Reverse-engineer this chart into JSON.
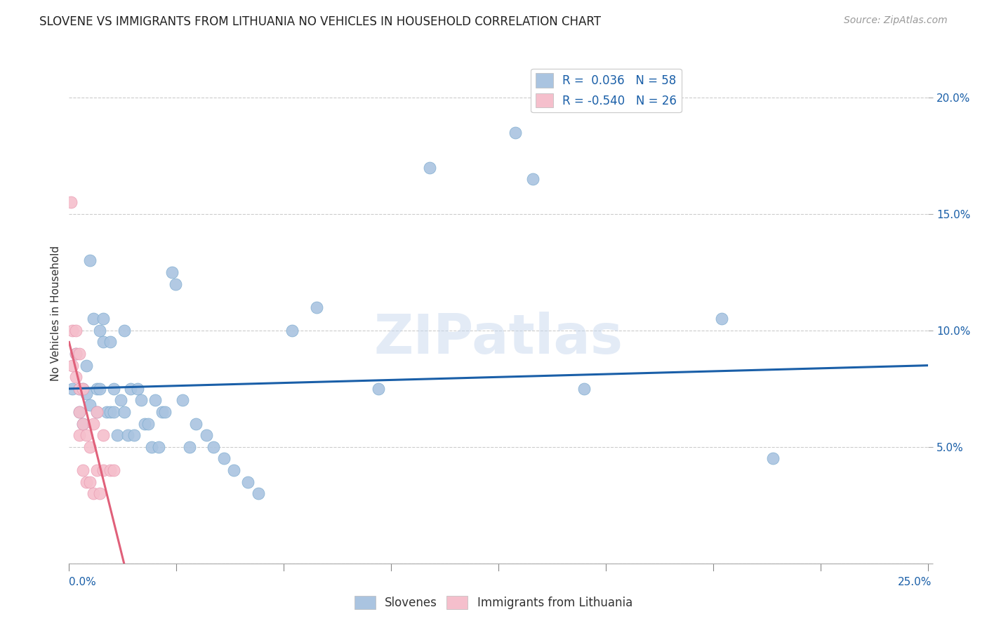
{
  "title": "SLOVENE VS IMMIGRANTS FROM LITHUANIA NO VEHICLES IN HOUSEHOLD CORRELATION CHART",
  "source": "Source: ZipAtlas.com",
  "ylabel": "No Vehicles in Household",
  "yticks": [
    0.0,
    0.05,
    0.1,
    0.15,
    0.2
  ],
  "ytick_labels": [
    "",
    "5.0%",
    "10.0%",
    "15.0%",
    "20.0%"
  ],
  "xlim": [
    0.0,
    0.25
  ],
  "ylim": [
    0.0,
    0.215
  ],
  "blue_color": "#aac4e0",
  "blue_edge_color": "#7aaace",
  "blue_line_color": "#1a5fa8",
  "pink_color": "#f5bfcc",
  "pink_edge_color": "#e898b0",
  "pink_line_color": "#e0607a",
  "legend_blue_label": "R =  0.036   N = 58",
  "legend_pink_label": "R = -0.540   N = 26",
  "blue_scatter_x": [
    0.001,
    0.002,
    0.003,
    0.003,
    0.004,
    0.004,
    0.005,
    0.005,
    0.006,
    0.006,
    0.007,
    0.008,
    0.008,
    0.009,
    0.009,
    0.01,
    0.01,
    0.011,
    0.012,
    0.012,
    0.013,
    0.013,
    0.014,
    0.015,
    0.016,
    0.016,
    0.017,
    0.018,
    0.019,
    0.02,
    0.021,
    0.022,
    0.023,
    0.024,
    0.025,
    0.026,
    0.027,
    0.028,
    0.03,
    0.031,
    0.033,
    0.035,
    0.037,
    0.04,
    0.042,
    0.045,
    0.048,
    0.052,
    0.055,
    0.065,
    0.072,
    0.09,
    0.105,
    0.13,
    0.135,
    0.19,
    0.205,
    0.15
  ],
  "blue_scatter_y": [
    0.075,
    0.09,
    0.075,
    0.065,
    0.075,
    0.06,
    0.085,
    0.073,
    0.13,
    0.068,
    0.105,
    0.075,
    0.065,
    0.1,
    0.075,
    0.105,
    0.095,
    0.065,
    0.095,
    0.065,
    0.075,
    0.065,
    0.055,
    0.07,
    0.065,
    0.1,
    0.055,
    0.075,
    0.055,
    0.075,
    0.07,
    0.06,
    0.06,
    0.05,
    0.07,
    0.05,
    0.065,
    0.065,
    0.125,
    0.12,
    0.07,
    0.05,
    0.06,
    0.055,
    0.05,
    0.045,
    0.04,
    0.035,
    0.03,
    0.1,
    0.11,
    0.075,
    0.17,
    0.185,
    0.165,
    0.105,
    0.045,
    0.075
  ],
  "pink_scatter_x": [
    0.0005,
    0.001,
    0.001,
    0.002,
    0.002,
    0.002,
    0.003,
    0.003,
    0.003,
    0.003,
    0.004,
    0.004,
    0.004,
    0.005,
    0.005,
    0.006,
    0.006,
    0.007,
    0.007,
    0.008,
    0.008,
    0.009,
    0.01,
    0.01,
    0.012,
    0.013
  ],
  "pink_scatter_y": [
    0.155,
    0.1,
    0.085,
    0.1,
    0.09,
    0.08,
    0.09,
    0.075,
    0.065,
    0.055,
    0.075,
    0.06,
    0.04,
    0.055,
    0.035,
    0.05,
    0.035,
    0.06,
    0.03,
    0.065,
    0.04,
    0.03,
    0.055,
    0.04,
    0.04,
    0.04
  ],
  "blue_trend_x": [
    0.0,
    0.25
  ],
  "blue_trend_y": [
    0.075,
    0.085
  ],
  "pink_trend_x": [
    0.0,
    0.016
  ],
  "pink_trend_y": [
    0.095,
    0.0
  ],
  "watermark": "ZIPatlas",
  "background_color": "#ffffff",
  "grid_color": "#cccccc",
  "title_fontsize": 12,
  "source_fontsize": 10,
  "tick_label_fontsize": 11,
  "ylabel_fontsize": 11,
  "legend_fontsize": 12
}
